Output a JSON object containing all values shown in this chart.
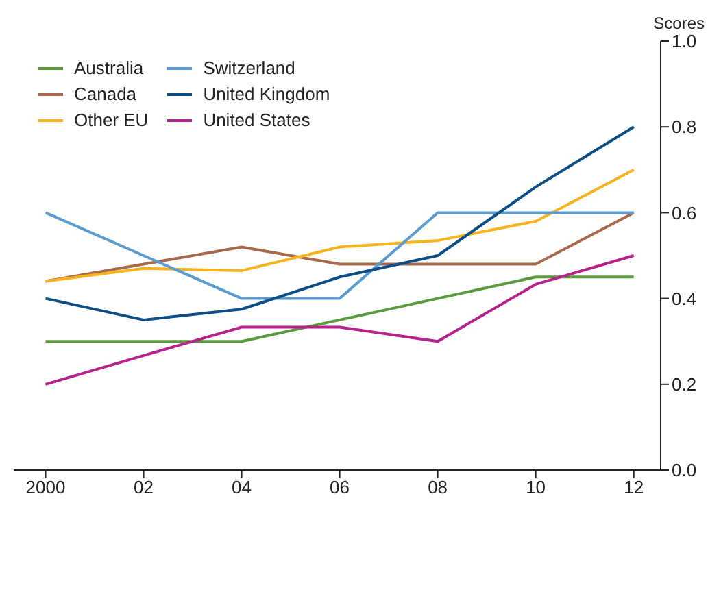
{
  "chart_data": {
    "type": "line",
    "ylabel": "Scores",
    "x": [
      2000,
      2002,
      2004,
      2006,
      2008,
      2010,
      2012
    ],
    "xlim": [
      1999.35,
      2012.55
    ],
    "xticks": [
      {
        "value": 2000,
        "label": "2000"
      },
      {
        "value": 2002,
        "label": "02"
      },
      {
        "value": 2004,
        "label": "04"
      },
      {
        "value": 2006,
        "label": "06"
      },
      {
        "value": 2008,
        "label": "08"
      },
      {
        "value": 2010,
        "label": "10"
      },
      {
        "value": 2012,
        "label": "12"
      }
    ],
    "ylim": [
      0,
      1
    ],
    "yticks": [
      {
        "value": 0,
        "label": "0.0"
      },
      {
        "value": 0.2,
        "label": "0.2"
      },
      {
        "value": 0.4,
        "label": "0.4"
      },
      {
        "value": 0.6,
        "label": "0.6"
      },
      {
        "value": 0.8,
        "label": "0.8"
      },
      {
        "value": 1,
        "label": "1.0"
      }
    ],
    "grid": false,
    "legend": "top left",
    "marker": "none",
    "line_style": "solid",
    "series": [
      {
        "name": "Australia",
        "color": "#5a9a3c",
        "values": [
          0.3,
          0.3,
          0.3,
          0.35,
          0.4,
          0.45,
          0.45
        ]
      },
      {
        "name": "Canada",
        "color": "#a8694a",
        "values": [
          0.44,
          0.48,
          0.52,
          0.48,
          0.48,
          0.48,
          0.6
        ]
      },
      {
        "name": "Other EU",
        "color": "#f7b31d",
        "values": [
          0.44,
          0.47,
          0.465,
          0.52,
          0.535,
          0.58,
          0.7
        ]
      },
      {
        "name": "Switzerland",
        "color": "#5b9bd0",
        "values": [
          0.6,
          0.5,
          0.4,
          0.4,
          0.6,
          0.6,
          0.6
        ]
      },
      {
        "name": "United Kingdom",
        "color": "#0e4e86",
        "values": [
          0.4,
          0.35,
          0.375,
          0.45,
          0.5,
          0.66,
          0.8
        ]
      },
      {
        "name": "United States",
        "color": "#b5228a",
        "values": [
          0.2,
          0.267,
          0.333,
          0.333,
          0.3,
          0.433,
          0.5
        ]
      }
    ]
  }
}
